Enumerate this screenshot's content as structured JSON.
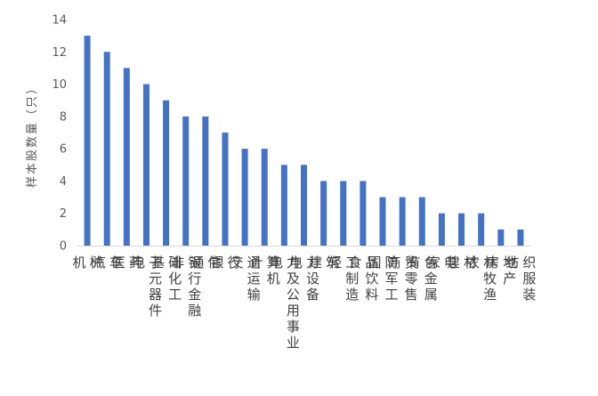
{
  "chart_data": {
    "type": "bar",
    "title": "",
    "xlabel": "",
    "ylabel": "样本股数量（只）",
    "ylim": [
      0,
      14
    ],
    "yticks": [
      0,
      2,
      4,
      6,
      8,
      10,
      12,
      14
    ],
    "grid": false,
    "legend": "none",
    "bar_color": "#4472C4",
    "categories": [
      "机械",
      "汽车",
      "医药",
      "电子元器件",
      "基础化工",
      "非银行金融",
      "通信",
      "银行",
      "交通运输",
      "计算机",
      "电力及公用事业",
      "电力设备",
      "建筑",
      "轻工制造",
      "食品饮料",
      "国防军工",
      "商贸零售",
      "有色金属",
      "家电",
      "建材",
      "农林牧渔",
      "房地产",
      "纺织服装"
    ],
    "values": [
      13,
      12,
      11,
      10,
      9,
      8,
      8,
      7,
      6,
      6,
      5,
      5,
      4,
      4,
      4,
      3,
      3,
      3,
      2,
      2,
      2,
      1,
      1
    ]
  }
}
